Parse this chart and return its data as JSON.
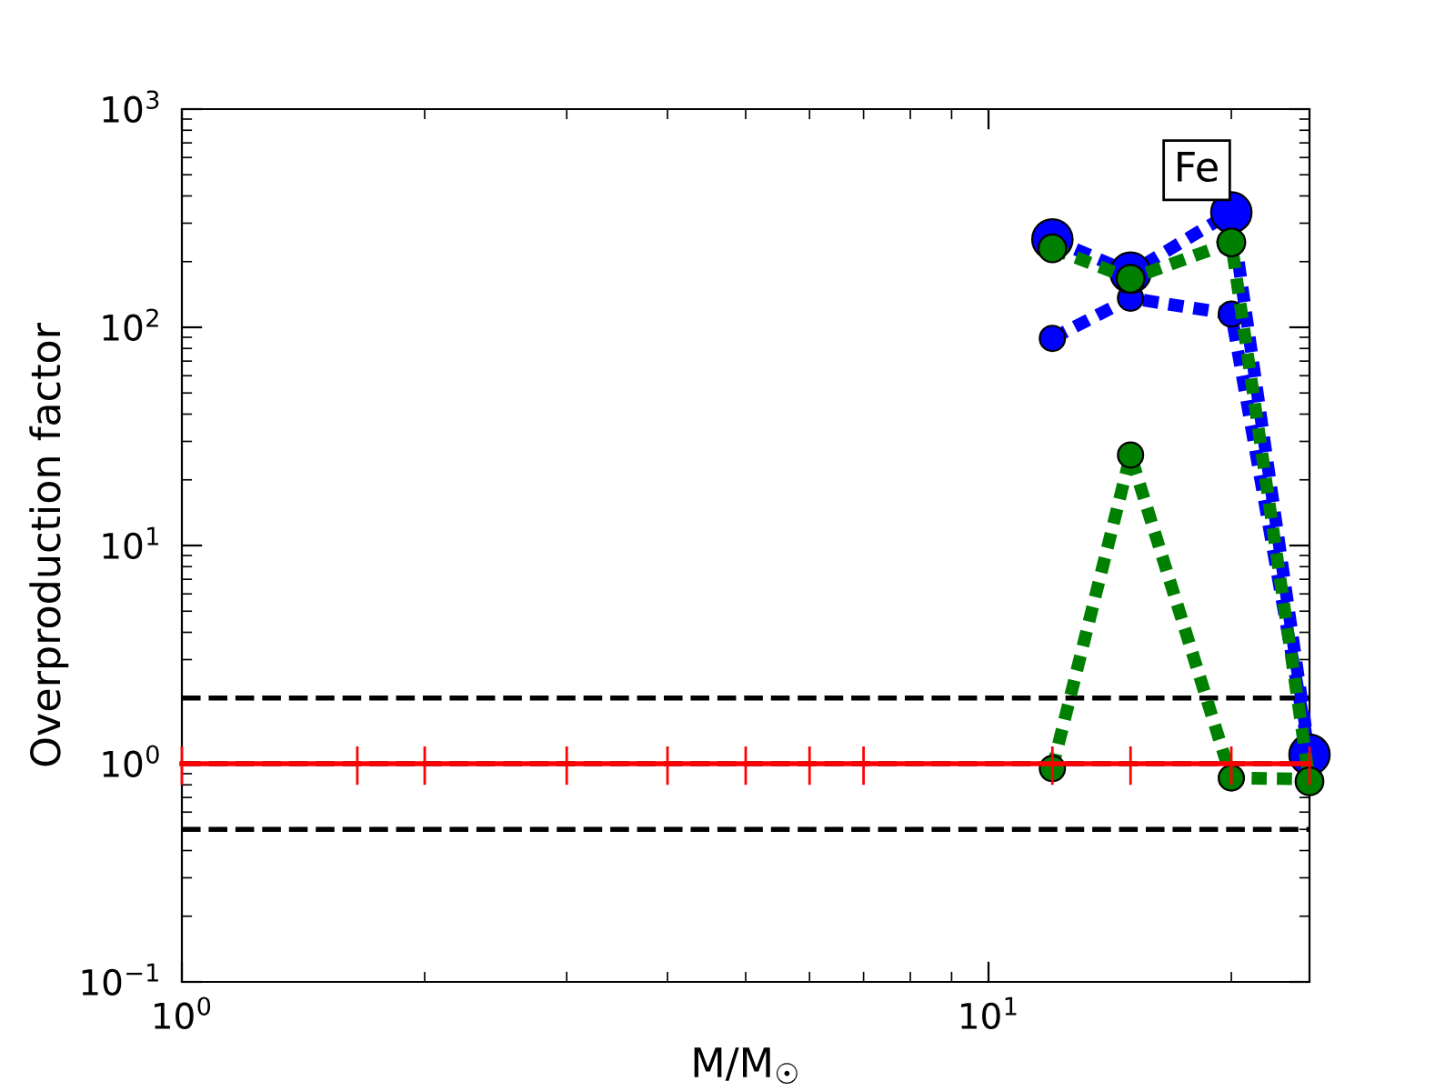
{
  "chart_data": {
    "type": "line",
    "xlabel": "M/M$_{☉}$",
    "ylabel": "Overproduction factor",
    "log": "xy",
    "grid": false,
    "legend": false,
    "marker": "circle",
    "line_style": "dashed",
    "xlim": [
      1,
      25
    ],
    "xticks": [
      {
        "value": 1,
        "label": "10$^{0}$"
      },
      {
        "value": 10,
        "label": "10$^{1}$"
      }
    ],
    "ylim": [
      0.1,
      1000
    ],
    "yticks": [
      {
        "value": 0.1,
        "label": "10$^{−1}$"
      },
      {
        "value": 1,
        "label": "10$^{0}$"
      },
      {
        "value": 10,
        "label": "10$^{1}$"
      },
      {
        "value": 100,
        "label": "10$^{2}$"
      },
      {
        "value": 1000,
        "label": "10$^{3}$"
      }
    ],
    "ref_lines": [
      {
        "axis": "y",
        "value": 0.5,
        "color": "#000000",
        "line_style": "dashed"
      },
      {
        "axis": "y",
        "value": 1,
        "color": "#000000",
        "line_style": "dashed"
      },
      {
        "axis": "y",
        "value": 2,
        "color": "#000000",
        "line_style": "dashed"
      }
    ],
    "annotations": [
      "Fe"
    ],
    "series": [
      {
        "color": "#ff0000",
        "x": [
          1,
          1.65,
          2,
          3,
          4,
          5,
          6,
          7,
          12,
          15,
          20,
          25
        ],
        "values": [
          1,
          1,
          1,
          1,
          1,
          1,
          1,
          1,
          1,
          1,
          1,
          1
        ],
        "errors": [
          0.2,
          0.2,
          0.2,
          0.2,
          0.2,
          0.2,
          0.2,
          0.2,
          0.2,
          0.2,
          0.2,
          0.2
        ],
        "marker": "none",
        "line_style": "solid"
      },
      {
        "color": "#008000",
        "x": [
          12,
          15,
          20,
          25
        ],
        "values": [
          0.95,
          26,
          0.86,
          0.85
        ]
      },
      {
        "color": "#0000ff",
        "x": [
          12,
          15,
          20,
          25
        ],
        "values": [
          89,
          136,
          115,
          1.1
        ]
      },
      {
        "color": "#008000",
        "x": [
          12,
          15,
          20,
          25
        ],
        "values": [
          230,
          167,
          245,
          0.83
        ]
      },
      {
        "color": "#0000ff",
        "x": [
          12,
          15,
          20,
          25
        ],
        "values": [
          253,
          178,
          336,
          1.1
        ]
      }
    ]
  }
}
